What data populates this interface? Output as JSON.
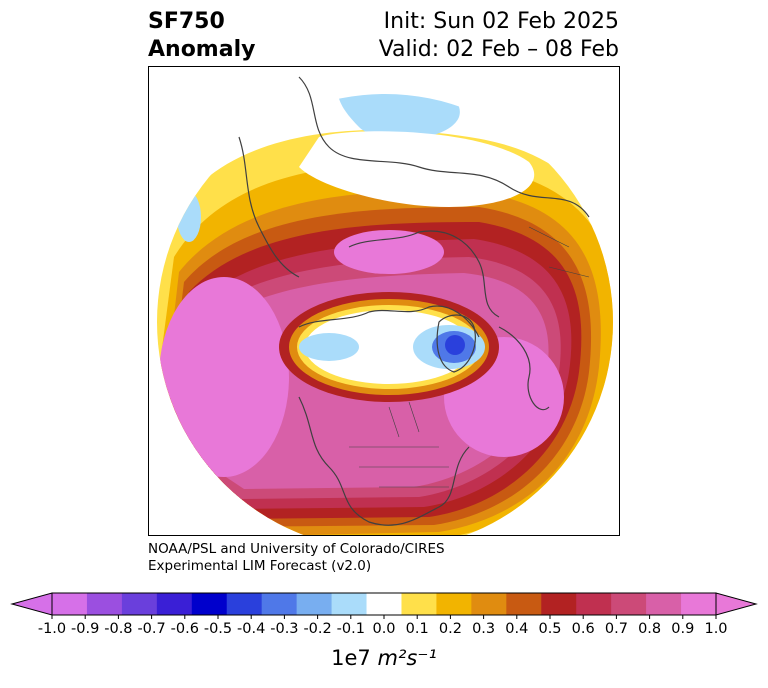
{
  "title": {
    "variable": "SF750",
    "subtitle": "Anomaly",
    "init": "Init: Sun 02 Feb 2025",
    "valid": "Valid: 02 Feb – 08 Feb"
  },
  "credit": {
    "line1": "NOAA/PSL and University of Colorado/CIRES",
    "line2": "Experimental LIM Forecast (v2.0)"
  },
  "map": {
    "projection": "north-polar-stereographic",
    "field": "750 hPa streamfunction anomaly",
    "features": [
      {
        "name": "negative-anomaly-arctic",
        "level": -0.2
      },
      {
        "name": "negative-anomaly-greenland-core",
        "level": -0.5
      },
      {
        "name": "negative-anomaly-siberia",
        "level": -0.2
      },
      {
        "name": "positive-ring-northern-hemisphere",
        "level": 0.9
      }
    ]
  },
  "colorbar": {
    "levels": [
      "-1.0",
      "-0.9",
      "-0.8",
      "-0.7",
      "-0.6",
      "-0.5",
      "-0.4",
      "-0.3",
      "-0.2",
      "-0.1",
      "0.0",
      "0.1",
      "0.2",
      "0.3",
      "0.4",
      "0.5",
      "0.6",
      "0.7",
      "0.8",
      "0.9",
      "1.0"
    ],
    "colors": [
      "#d670e8",
      "#9b4fe0",
      "#6a3fdc",
      "#3a1fd6",
      "#0000cc",
      "#2a40dc",
      "#4f78e8",
      "#78aef0",
      "#aadcfa",
      "#ffffff",
      "#ffe04a",
      "#f2b400",
      "#e08c10",
      "#c85a12",
      "#b22222",
      "#c03050",
      "#cc4a78",
      "#d860a8",
      "#e878d8"
    ],
    "under_color": "#d670e8",
    "over_color": "#e878d8",
    "unit_prefix": "1e7",
    "unit": "m²s⁻¹"
  }
}
